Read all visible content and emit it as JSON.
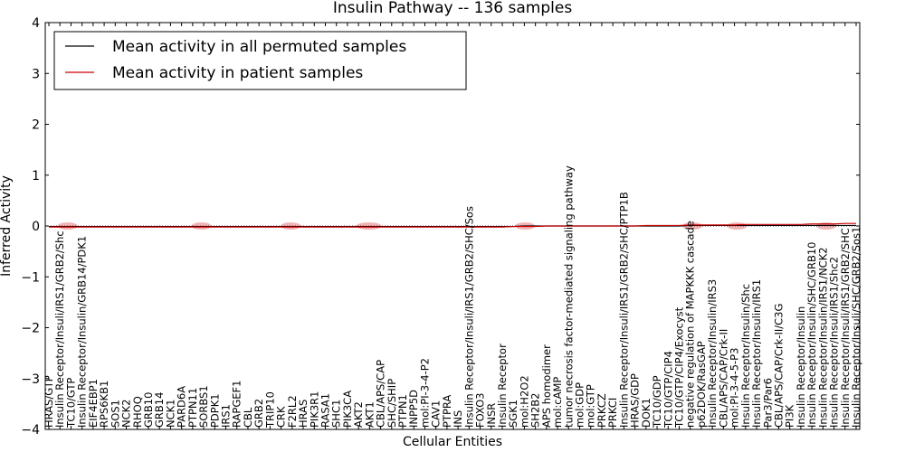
{
  "chart_data": {
    "type": "line",
    "title": "Insulin Pathway -- 136 samples",
    "xlabel": "Cellular Entities",
    "ylabel": "Inferred Activity",
    "ylim": [
      -4,
      4
    ],
    "yticks": [
      "4",
      "3",
      "2",
      "1",
      "0",
      "−1",
      "−2",
      "−3",
      "−4"
    ],
    "legend_placement": "top-left",
    "colors": {
      "permuted": "#000000",
      "patient": "#cc0000",
      "band": "#e05a5a",
      "zero_line": "#333333"
    },
    "categories": [
      "HRAS/GTP",
      "Insulin Receptor/Insuli/IRS1/GRB2/Shc",
      "TC10/GTP",
      "Insulin Receptor/Insulin/GRB14/PDK1",
      "EIF4EBP1",
      "RPS6KB1",
      "SOS1",
      "NCK2",
      "RHOQ",
      "GRB10",
      "GRB14",
      "NCK1",
      "PARD6A",
      "PTPN11",
      "SORBS1",
      "PDPK1",
      "IRS1",
      "RAPGEF1",
      "CBL",
      "GRB2",
      "TRIP10",
      "CRK",
      "F2RL2",
      "HRAS",
      "PIK3R1",
      "RASA1",
      "SHC1",
      "PIK3CA",
      "AKT2",
      "AKT1",
      "CBL/APS/CAP",
      "SHC/SHIP",
      "PTPN1",
      "INPP5D",
      "mol:PI-3-4-P2",
      "CAV1",
      "PTPRA",
      "INS",
      "Insulin Receptor/Insuli/IRS1/GRB2/SHC/Sos",
      "FOXO3",
      "INSR",
      "Insulin Receptor",
      "SGK1",
      "mol:H2O2",
      "SH2B2",
      "APS homodimer",
      "mol:cAMP",
      "tumor necrosis factor-mediated signaling pathway",
      "mol:GDP",
      "mol:GTP",
      "PRKCZ",
      "PRKCI",
      "Insulin Receptor/Insuli/IRS1/GRB2/SHC/PTP1B",
      "HRAS/GDP",
      "DOK1",
      "TC10/GDP",
      "TC10/GTP/CIP4",
      "TC10/GTP/CIP4/Exocyst",
      "negative regulation of MAPKKK cascade",
      "p62DOK/RasGAP",
      "Insulin Receptor/Insulin/IRS3",
      "CBL/APS/CAP/Crk-II",
      "mol:PI-3-4-5-P3",
      "Insulin Receptor/Insulin/Shc",
      "Insulin Receptor/Insulin/IRS1",
      "Par3/Par6",
      "CBL/APS/CAP/Crk-II/C3G",
      "PI3K",
      "Insulin Receptor/Insulin",
      "Insulin Receptor/Insulin/SHC/GRB10",
      "Insulin Receptor/Insulin/IRS1/NCK2",
      "Insulin Receptor/Insuli/IRS1/Shc2",
      "Insulin Receptor/Insuli/IRS1/GRB2/SHC",
      "Insulin Receptor/Insuli/SHC/GRB2/Sos1"
    ],
    "series": [
      {
        "name": "Mean activity in all permuted samples",
        "values": [
          -0.01,
          -0.01,
          -0.01,
          -0.01,
          -0.01,
          -0.01,
          -0.01,
          -0.01,
          -0.01,
          -0.01,
          -0.01,
          -0.01,
          -0.01,
          -0.01,
          -0.01,
          -0.01,
          -0.01,
          -0.01,
          -0.01,
          -0.01,
          -0.01,
          -0.01,
          -0.01,
          -0.01,
          -0.01,
          -0.01,
          -0.01,
          -0.01,
          -0.01,
          -0.01,
          -0.01,
          -0.01,
          -0.01,
          -0.01,
          -0.01,
          -0.01,
          -0.01,
          -0.01,
          -0.01,
          -0.01,
          -0.01,
          -0.01,
          -0.01,
          0.0,
          0.0,
          0.0,
          0.0,
          0.0,
          0.0,
          0.0,
          0.0,
          0.0,
          0.0,
          0.0,
          0.0,
          0.0,
          0.0,
          0.0,
          0.01,
          0.01,
          0.01,
          0.01,
          0.01,
          0.01,
          0.01,
          0.01,
          0.01,
          0.01,
          0.01,
          0.01,
          0.01,
          0.01,
          0.01,
          0.01
        ]
      },
      {
        "name": "Mean activity in patient samples",
        "values": [
          -0.02,
          -0.02,
          -0.02,
          -0.02,
          -0.02,
          -0.02,
          -0.02,
          -0.02,
          -0.02,
          -0.02,
          -0.02,
          -0.02,
          -0.02,
          -0.02,
          -0.02,
          -0.02,
          -0.02,
          -0.02,
          -0.02,
          -0.02,
          -0.02,
          -0.02,
          -0.02,
          -0.02,
          -0.02,
          -0.02,
          -0.02,
          -0.02,
          -0.02,
          -0.02,
          -0.02,
          -0.02,
          -0.02,
          -0.02,
          -0.02,
          -0.02,
          -0.02,
          -0.02,
          -0.02,
          -0.02,
          -0.02,
          -0.02,
          -0.01,
          -0.01,
          -0.01,
          0.0,
          0.0,
          0.0,
          0.0,
          0.0,
          0.0,
          0.0,
          0.0,
          0.0,
          0.01,
          0.01,
          0.01,
          0.01,
          0.02,
          0.02,
          0.02,
          0.02,
          0.02,
          0.03,
          0.03,
          0.03,
          0.03,
          0.03,
          0.03,
          0.04,
          0.04,
          0.04,
          0.05,
          0.05
        ]
      }
    ]
  }
}
